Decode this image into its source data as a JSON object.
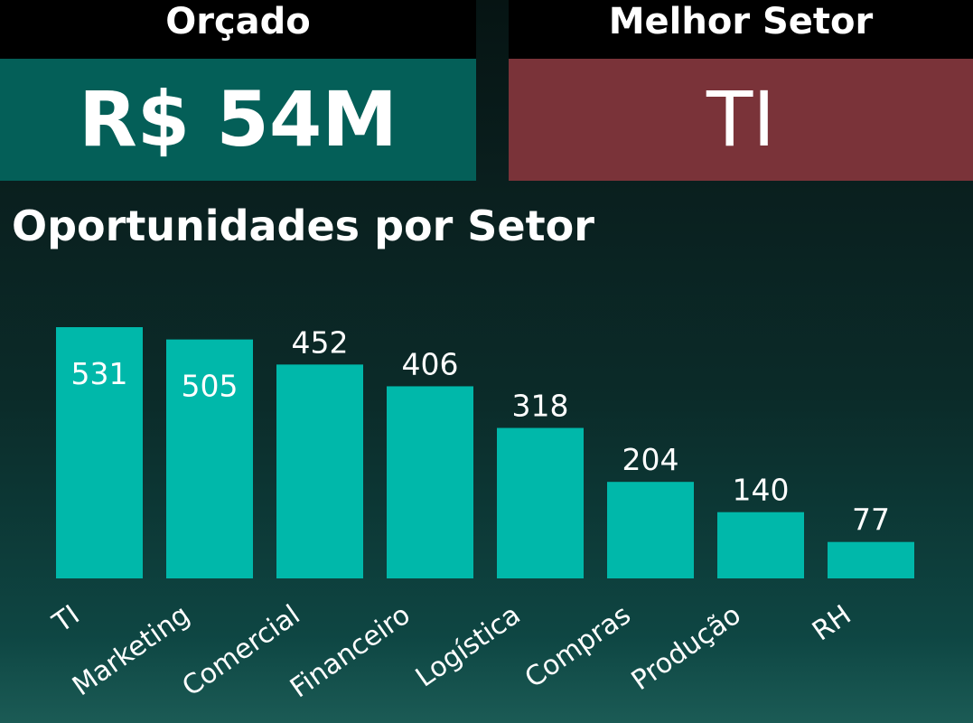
{
  "kpis": {
    "orcado": {
      "label": "Orçado",
      "value": "R$ 54M"
    },
    "melhor_setor": {
      "label": "Melhor Setor",
      "value": "TI"
    }
  },
  "colors": {
    "bar": "#00b8aa",
    "orcado_card": "#045f58",
    "melhor_setor_card": "#7a3339",
    "header": "#000000",
    "text": "#ffffff"
  },
  "chart_data": {
    "type": "bar",
    "title": "Oportunidades por Setor",
    "categories": [
      "TI",
      "Marketing",
      "Comercial",
      "Financeiro",
      "Logística",
      "Compras",
      "Produção",
      "RH"
    ],
    "values": [
      531,
      505,
      452,
      406,
      318,
      204,
      140,
      77
    ],
    "xlabel": "",
    "ylabel": "",
    "ylim": [
      0,
      531
    ],
    "grid": false,
    "legend": "none",
    "data_labels": true
  }
}
